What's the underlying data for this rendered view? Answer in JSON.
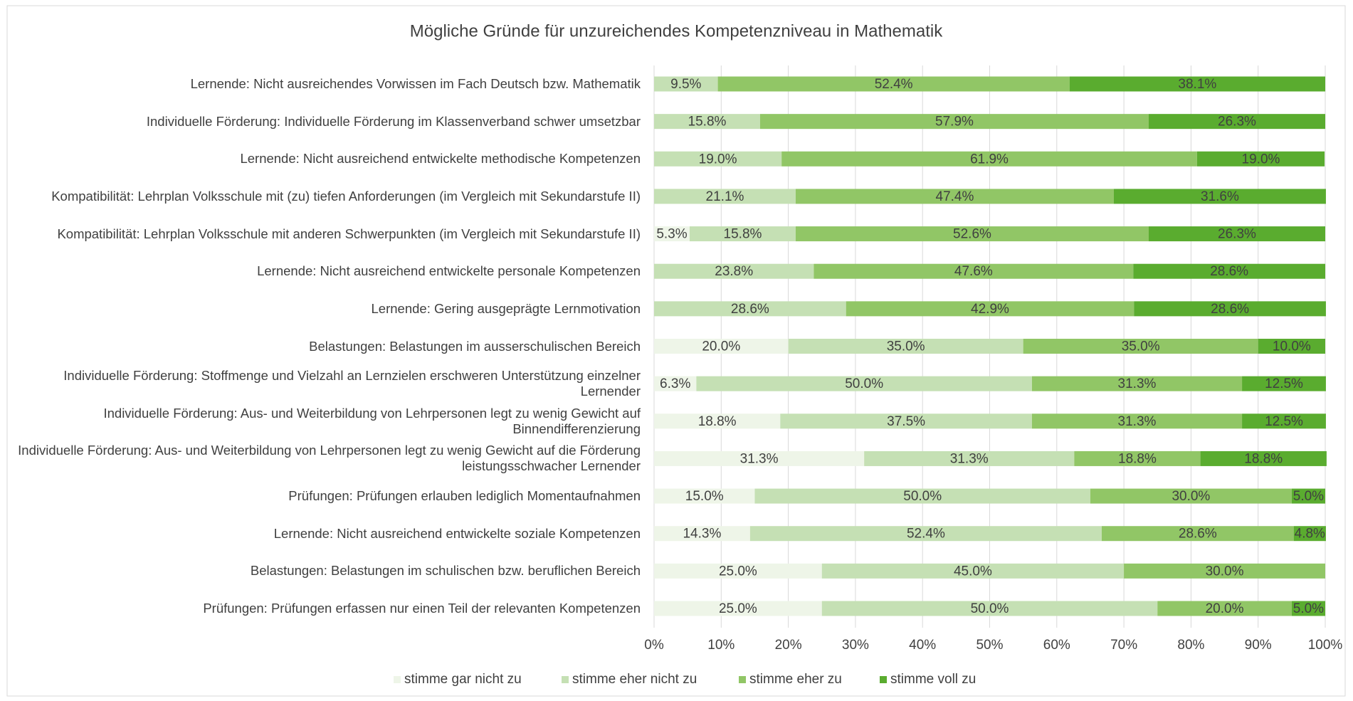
{
  "chart_data": {
    "type": "stacked_bar_horizontal",
    "title": "Mögliche Gründe für unzureichendes Kompetenzniveau in Mathematik",
    "categories": [
      "Lernende: Nicht ausreichendes Vorwissen im Fach Deutsch bzw. Mathematik",
      "Individuelle Förderung: Individuelle Förderung im Klassenverband schwer umsetzbar",
      "Lernende: Nicht ausreichend entwickelte methodische Kompetenzen",
      "Kompatibilität: Lehrplan Volksschule mit (zu) tiefen Anforderungen (im Vergleich mit Sekundarstufe II)",
      "Kompatibilität: Lehrplan Volksschule mit anderen Schwerpunkten (im Vergleich mit Sekundarstufe II)",
      "Lernende: Nicht ausreichend entwickelte personale Kompetenzen",
      "Lernende: Gering ausgeprägte Lernmotivation",
      "Belastungen: Belastungen im ausserschulischen Bereich",
      "Individuelle Förderung: Stoffmenge und Vielzahl an Lernzielen erschweren Unterstützung einzelner Lernender",
      "Individuelle Förderung: Aus- und Weiterbildung von Lehrpersonen legt zu wenig Gewicht auf Binnendifferenzierung",
      "Individuelle Förderung: Aus- und Weiterbildung von Lehrpersonen legt zu wenig Gewicht auf die Förderung leistungsschwacher Lernender",
      "Prüfungen: Prüfungen erlauben lediglich Momentaufnahmen",
      "Lernende: Nicht ausreichend entwickelte soziale Kompetenzen",
      "Belastungen: Belastungen im schulischen bzw. beruflichen Bereich",
      "Prüfungen: Prüfungen erfassen nur einen Teil der relevanten Kompetenzen"
    ],
    "series": [
      {
        "name": "stimme gar nicht zu",
        "color": "#eef5e8",
        "values": [
          null,
          null,
          null,
          null,
          5.3,
          null,
          null,
          20.0,
          6.3,
          18.8,
          31.3,
          15.0,
          14.3,
          25.0,
          25.0
        ],
        "value_labels": [
          null,
          null,
          null,
          null,
          "5.3%",
          null,
          null,
          "20.0%",
          "6.3%",
          "18.8%",
          "31.3%",
          "15.0%",
          "14.3%",
          "25.0%",
          "25.0%"
        ]
      },
      {
        "name": "stimme eher nicht zu",
        "color": "#c5e0b4",
        "values": [
          9.5,
          15.8,
          19.0,
          21.1,
          15.8,
          23.8,
          28.6,
          35.0,
          50.0,
          37.5,
          31.3,
          50.0,
          52.4,
          45.0,
          50.0
        ],
        "value_labels": [
          "9.5%",
          "15.8%",
          "19.0%",
          "21.1%",
          "15.8%",
          "23.8%",
          "28.6%",
          "35.0%",
          "50.0%",
          "37.5%",
          "31.3%",
          "50.0%",
          "52.4%",
          "45.0%",
          "50.0%"
        ]
      },
      {
        "name": "stimme eher zu",
        "color": "#91c666",
        "values": [
          52.4,
          57.9,
          61.9,
          47.4,
          52.6,
          47.6,
          42.9,
          35.0,
          31.3,
          31.3,
          18.8,
          30.0,
          28.6,
          30.0,
          20.0
        ],
        "value_labels": [
          "52.4%",
          "57.9%",
          "61.9%",
          "47.4%",
          "52.6%",
          "47.6%",
          "42.9%",
          "35.0%",
          "31.3%",
          "31.3%",
          "18.8%",
          "30.0%",
          "28.6%",
          "30.0%",
          "20.0%"
        ]
      },
      {
        "name": "stimme voll zu",
        "color": "#5aac2f",
        "values": [
          38.1,
          26.3,
          19.0,
          31.6,
          26.3,
          28.6,
          28.6,
          10.0,
          12.5,
          12.5,
          18.8,
          5.0,
          4.8,
          null,
          5.0
        ],
        "value_labels": [
          "38.1%",
          "26.3%",
          "19.0%",
          "31.6%",
          "26.3%",
          "28.6%",
          "28.6%",
          "10.0%",
          "12.5%",
          "12.5%",
          "18.8%",
          "5.0%",
          "4.8%",
          null,
          "5.0%"
        ]
      }
    ],
    "xlim": [
      0,
      100
    ],
    "xticks": [
      {
        "value": 0,
        "label": "0%"
      },
      {
        "value": 10,
        "label": "10%"
      },
      {
        "value": 20,
        "label": "20%"
      },
      {
        "value": 30,
        "label": "30%"
      },
      {
        "value": 40,
        "label": "40%"
      },
      {
        "value": 50,
        "label": "50%"
      },
      {
        "value": 60,
        "label": "60%"
      },
      {
        "value": 70,
        "label": "70%"
      },
      {
        "value": 80,
        "label": "80%"
      },
      {
        "value": 90,
        "label": "90%"
      },
      {
        "value": 100,
        "label": "100%"
      }
    ],
    "grid": true,
    "legend": "bottom"
  }
}
